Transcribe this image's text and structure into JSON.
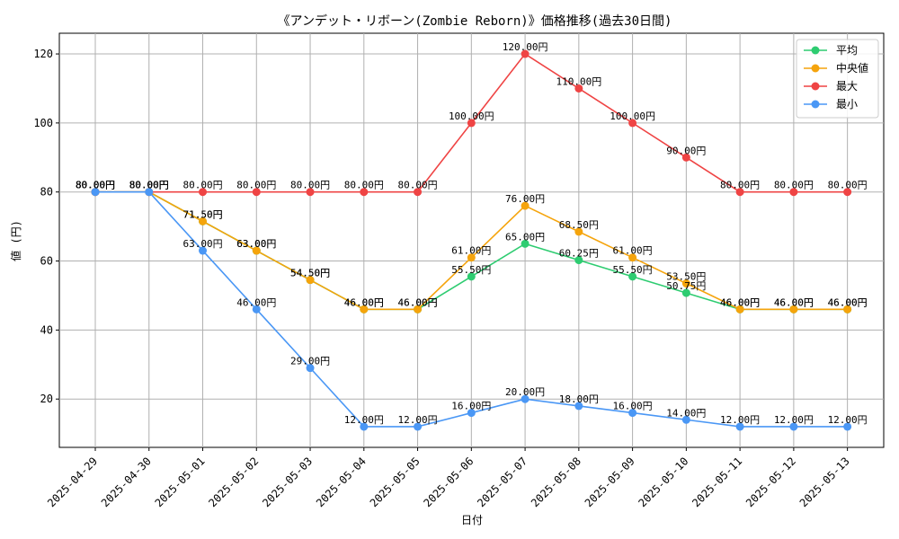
{
  "chart_data": {
    "type": "line",
    "title": "《アンデット・リボーン(Zombie Reborn)》価格推移(過去30日間)",
    "xlabel": "日付",
    "ylabel": "値 (円)",
    "value_suffix": "円",
    "ylim": [
      6,
      126
    ],
    "yticks": [
      20,
      40,
      60,
      80,
      100,
      120
    ],
    "grid": true,
    "legend_position": "top-right",
    "categories": [
      "2025-04-29",
      "2025-04-30",
      "2025-05-01",
      "2025-05-02",
      "2025-05-03",
      "2025-05-04",
      "2025-05-05",
      "2025-05-06",
      "2025-05-07",
      "2025-05-08",
      "2025-05-09",
      "2025-05-10",
      "2025-05-11",
      "2025-05-12",
      "2025-05-13"
    ],
    "series": [
      {
        "name": "平均",
        "color": "#2ecc71",
        "values": [
          80,
          80,
          71.5,
          63,
          54.5,
          46,
          46,
          55.5,
          65,
          60.25,
          55.5,
          50.75,
          46,
          46,
          46
        ]
      },
      {
        "name": "中央値",
        "color": "#f5a40c",
        "values": [
          80,
          80,
          71.5,
          63,
          54.5,
          46,
          46,
          61,
          76,
          68.5,
          61,
          53.5,
          46,
          46,
          46
        ]
      },
      {
        "name": "最大",
        "color": "#ef4444",
        "values": [
          80,
          80,
          80,
          80,
          80,
          80,
          80,
          100,
          120,
          110,
          100,
          90,
          80,
          80,
          80
        ]
      },
      {
        "name": "最小",
        "color": "#4a97f5",
        "values": [
          80,
          80,
          63,
          46,
          29,
          12,
          12,
          16,
          20,
          18,
          16,
          14,
          12,
          12,
          12
        ]
      }
    ]
  }
}
